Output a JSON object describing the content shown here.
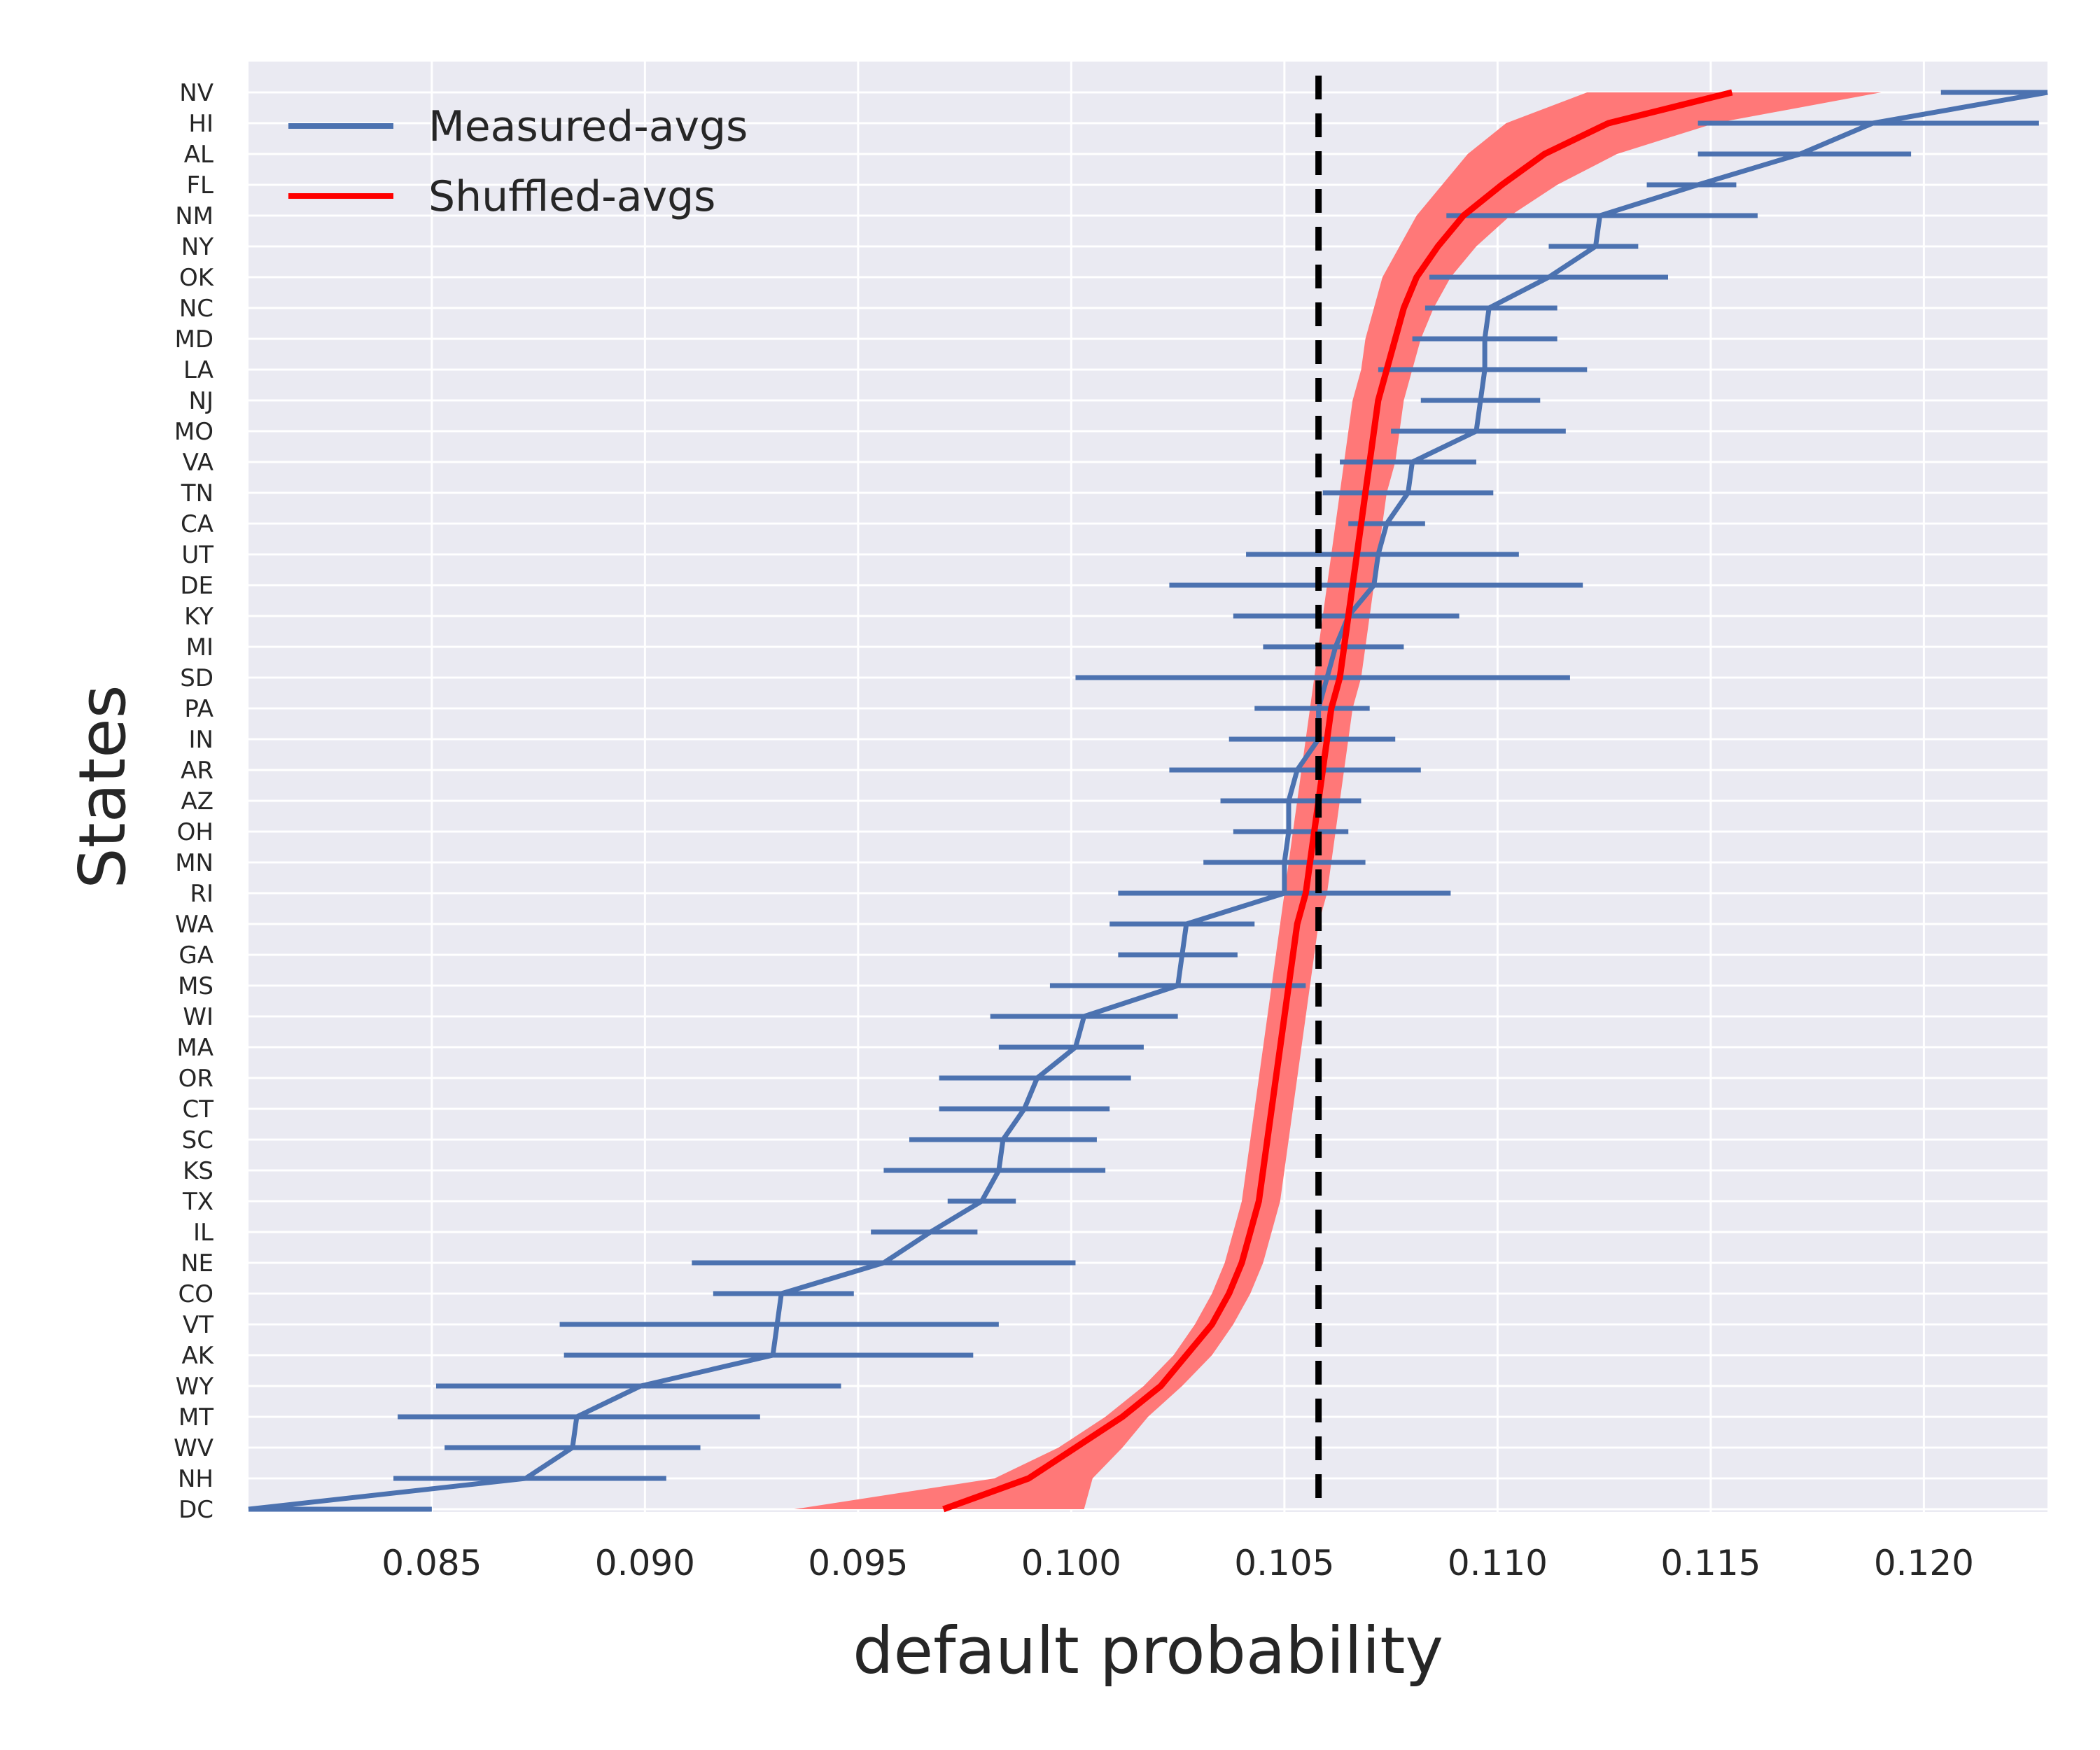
{
  "chart_data": {
    "type": "line",
    "title": "",
    "xlabel": "default probability",
    "ylabel": "States",
    "xlim": [
      0.0807,
      0.1229
    ],
    "xticks": [
      "0.085",
      "0.090",
      "0.095",
      "0.100",
      "0.105",
      "0.110",
      "0.115",
      "0.120"
    ],
    "grid": true,
    "legend_position": "upper-left",
    "colors": {
      "measured": "#4c72b0",
      "shuffled": "#ff0000",
      "shuffled_band": "#ff7878",
      "reference_line": "#000000",
      "plot_background": "#eaeaf2",
      "grid": "#ffffff"
    },
    "reference_line": 0.1058,
    "categories": [
      "NV",
      "HI",
      "AL",
      "FL",
      "NM",
      "NY",
      "OK",
      "NC",
      "MD",
      "LA",
      "NJ",
      "MO",
      "VA",
      "TN",
      "CA",
      "UT",
      "DE",
      "KY",
      "MI",
      "SD",
      "PA",
      "IN",
      "AR",
      "AZ",
      "OH",
      "MN",
      "RI",
      "WA",
      "GA",
      "MS",
      "WI",
      "MA",
      "OR",
      "CT",
      "SC",
      "KS",
      "TX",
      "IL",
      "NE",
      "CO",
      "VT",
      "AK",
      "WY",
      "MT",
      "WV",
      "NH",
      "DC"
    ],
    "series": [
      {
        "name": "Measured-avgs",
        "values": [
          0.1241,
          0.1188,
          0.1171,
          0.1147,
          0.1124,
          0.1123,
          0.1112,
          0.1098,
          0.1097,
          0.1097,
          0.1096,
          0.1095,
          0.108,
          0.1079,
          0.1074,
          0.1072,
          0.1071,
          0.1065,
          0.1062,
          0.106,
          0.1058,
          0.1058,
          0.1053,
          0.1051,
          0.1051,
          0.105,
          0.105,
          0.1027,
          0.1026,
          0.1025,
          0.1003,
          0.1001,
          0.0992,
          0.0989,
          0.0984,
          0.0983,
          0.0979,
          0.0967,
          0.0956,
          0.0932,
          0.0931,
          0.093,
          0.0899,
          0.0884,
          0.0883,
          0.0872,
          0.0802
        ],
        "err_low": [
          0.1204,
          0.1147,
          0.1147,
          0.1135,
          0.1088,
          0.1112,
          0.1084,
          0.1083,
          0.108,
          0.1072,
          0.1082,
          0.1075,
          0.1063,
          0.1059,
          0.1065,
          0.1041,
          0.1023,
          0.1038,
          0.1045,
          0.1001,
          0.1043,
          0.1037,
          0.1023,
          0.1035,
          0.1038,
          0.1031,
          0.1011,
          0.1009,
          0.1011,
          0.0995,
          0.0981,
          0.0983,
          0.0969,
          0.0969,
          0.0962,
          0.0956,
          0.0971,
          0.0953,
          0.0911,
          0.0916,
          0.088,
          0.0881,
          0.0851,
          0.0842,
          0.0853,
          0.0841,
          0.0779
        ],
        "err_high": [
          0.1278,
          0.1227,
          0.1197,
          0.1156,
          0.1161,
          0.1133,
          0.114,
          0.1114,
          0.1114,
          0.1121,
          0.111,
          0.1116,
          0.1095,
          0.1099,
          0.1083,
          0.1105,
          0.112,
          0.1091,
          0.1078,
          0.1117,
          0.107,
          0.1076,
          0.1082,
          0.1068,
          0.1065,
          0.1069,
          0.1089,
          0.1043,
          0.1039,
          0.1055,
          0.1025,
          0.1017,
          0.1014,
          0.1009,
          0.1006,
          0.1008,
          0.0987,
          0.0978,
          0.1001,
          0.0949,
          0.0983,
          0.0977,
          0.0946,
          0.0927,
          0.0913,
          0.0905,
          0.085
        ]
      },
      {
        "name": "Shuffled-avgs",
        "values": [
          0.1155,
          0.1126,
          0.1111,
          0.1101,
          0.1092,
          0.1086,
          0.1081,
          0.1078,
          0.1076,
          0.1074,
          0.1072,
          0.1071,
          0.107,
          0.1069,
          0.1068,
          0.1067,
          0.1066,
          0.1065,
          0.1064,
          0.1063,
          0.1061,
          0.106,
          0.1059,
          0.1058,
          0.1057,
          0.1056,
          0.1055,
          0.1053,
          0.1052,
          0.1051,
          0.105,
          0.1049,
          0.1048,
          0.1047,
          0.1046,
          0.1045,
          0.1044,
          0.1042,
          0.104,
          0.1037,
          0.1033,
          0.1027,
          0.1021,
          0.1012,
          0.1001,
          0.099,
          0.097
        ],
        "band_low": [
          0.1121,
          0.1102,
          0.1093,
          0.1087,
          0.1081,
          0.1077,
          0.1073,
          0.1071,
          0.1069,
          0.1068,
          0.1066,
          0.1065,
          0.1064,
          0.1063,
          0.1062,
          0.1061,
          0.106,
          0.1059,
          0.1058,
          0.1057,
          0.1056,
          0.1055,
          0.1054,
          0.1053,
          0.1052,
          0.1051,
          0.105,
          0.1049,
          0.1048,
          0.1047,
          0.1046,
          0.1045,
          0.1044,
          0.1043,
          0.1042,
          0.1041,
          0.104,
          0.1038,
          0.1036,
          0.1033,
          0.1029,
          0.1024,
          0.1017,
          0.1008,
          0.0997,
          0.0982,
          0.0935
        ],
        "band_high": [
          0.119,
          0.1151,
          0.1128,
          0.1114,
          0.1103,
          0.1095,
          0.1089,
          0.1085,
          0.1082,
          0.108,
          0.1078,
          0.1077,
          0.1076,
          0.1074,
          0.1073,
          0.1072,
          0.1071,
          0.107,
          0.1069,
          0.1068,
          0.1066,
          0.1065,
          0.1064,
          0.1063,
          0.1062,
          0.1061,
          0.106,
          0.1058,
          0.1057,
          0.1056,
          0.1055,
          0.1054,
          0.1053,
          0.1052,
          0.1051,
          0.105,
          0.1049,
          0.1047,
          0.1045,
          0.1042,
          0.1038,
          0.1033,
          0.1026,
          0.1018,
          0.1012,
          0.1005,
          0.1003
        ]
      }
    ]
  }
}
